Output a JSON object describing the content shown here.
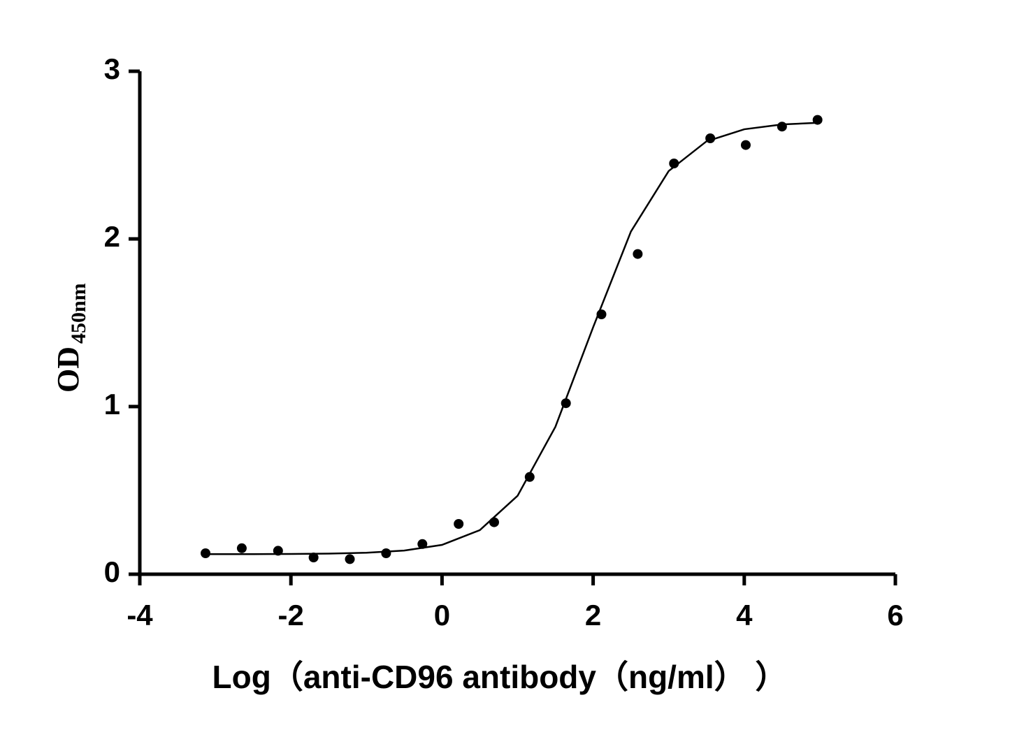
{
  "chart_data": {
    "type": "scatter",
    "y_label": "OD",
    "y_label_sub": "450nm",
    "x_label": "Log（anti-CD96 antibody（ng/ml） ）",
    "x": [
      -3.13,
      -2.65,
      -2.17,
      -1.7,
      -1.22,
      -0.74,
      -0.26,
      0.22,
      0.69,
      1.16,
      1.64,
      2.11,
      2.59,
      3.07,
      3.55,
      4.02,
      4.5,
      4.97
    ],
    "values": [
      0.125,
      0.155,
      0.14,
      0.1,
      0.09,
      0.125,
      0.18,
      0.3,
      0.31,
      0.58,
      1.02,
      1.55,
      1.91,
      2.45,
      2.6,
      2.56,
      2.67,
      2.71
    ],
    "color": "#000000",
    "fit": {
      "x": [
        -3.1,
        -2.5,
        -2,
        -1.5,
        -1,
        -0.5,
        0,
        0.5,
        1,
        1.5,
        2,
        2.5,
        3,
        3.5,
        4,
        4.5,
        5
      ],
      "values": [
        0.12,
        0.12,
        0.121,
        0.123,
        0.128,
        0.141,
        0.175,
        0.263,
        0.468,
        0.879,
        1.473,
        2.044,
        2.405,
        2.582,
        2.654,
        2.683,
        2.693
      ],
      "color": "#000000"
    },
    "xlim": [
      -4,
      6
    ],
    "xticks": [
      -4,
      -2,
      0,
      2,
      4,
      6
    ],
    "ylim": [
      0,
      3
    ],
    "yticks": [
      0,
      1,
      2,
      3
    ]
  }
}
